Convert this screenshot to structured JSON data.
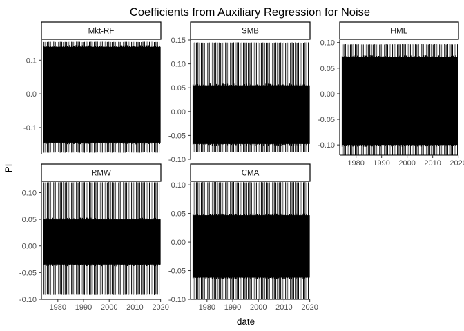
{
  "chart_data": {
    "type": "line",
    "title": "Coefficients from Auxiliary Regression for Noise",
    "xlabel": "date",
    "ylabel": "PI",
    "x_range": [
      1973.6,
      2020.1
    ],
    "x_ticks": [
      1980,
      1990,
      2000,
      2010,
      2020
    ],
    "grid": false,
    "facet_scales": "free_y",
    "line_color": "#000000",
    "panels": [
      {
        "name": "Mkt-RF",
        "ylim": [
          -0.18,
          0.16
        ],
        "y_ticks": [
          -0.1,
          0.0,
          0.1
        ],
        "y_tick_labels": [
          "-0.1",
          "0.0",
          "0.1"
        ],
        "upper_max": 0.155,
        "upper_band": 0.14,
        "lower_min": -0.175,
        "lower_band": -0.145,
        "series": [
          {
            "values_summary": "dense oscillating series approx -0.17 to 0.15"
          }
        ]
      },
      {
        "name": "SMB",
        "ylim": [
          -0.1,
          0.15
        ],
        "y_ticks": [
          -0.1,
          -0.05,
          0.0,
          0.05,
          0.1,
          0.15
        ],
        "y_tick_labels": [
          "-0.10",
          "-0.05",
          "0.00",
          "0.05",
          "0.10",
          "0.15"
        ],
        "upper_max": 0.145,
        "upper_band": 0.055,
        "lower_min": -0.085,
        "lower_band": -0.068,
        "series": [
          {
            "values_summary": "dense oscillating series approx -0.085 to 0.145"
          }
        ]
      },
      {
        "name": "HML",
        "ylim": [
          -0.12,
          0.105
        ],
        "y_ticks": [
          -0.1,
          -0.05,
          0.0,
          0.05,
          0.1
        ],
        "y_tick_labels": [
          "-0.10",
          "-0.05",
          "0.00",
          "0.05",
          "0.10"
        ],
        "upper_max": 0.097,
        "upper_band": 0.072,
        "lower_min": -0.12,
        "lower_band": -0.1,
        "series": [
          {
            "values_summary": "dense oscillating series approx -0.12 to 0.097"
          }
        ]
      },
      {
        "name": "RMW",
        "ylim": [
          -0.1,
          0.12
        ],
        "y_ticks": [
          -0.1,
          -0.05,
          0.0,
          0.05,
          0.1
        ],
        "y_tick_labels": [
          "-0.10",
          "-0.05",
          "0.00",
          "0.05",
          "0.10"
        ],
        "upper_max": 0.12,
        "upper_band": 0.05,
        "lower_min": -0.092,
        "lower_band": -0.035,
        "series": [
          {
            "values_summary": "dense oscillating series approx -0.09 to 0.12"
          }
        ]
      },
      {
        "name": "CMA",
        "ylim": [
          -0.1,
          0.105
        ],
        "y_ticks": [
          -0.1,
          -0.05,
          0.0,
          0.05,
          0.1
        ],
        "y_tick_labels": [
          "-0.10",
          "-0.05",
          "0.00",
          "0.05",
          "0.10"
        ],
        "upper_max": 0.105,
        "upper_band": 0.047,
        "lower_min": -0.1,
        "lower_band": -0.062,
        "series": [
          {
            "values_summary": "dense oscillating series approx -0.10 to 0.105"
          }
        ]
      }
    ]
  }
}
